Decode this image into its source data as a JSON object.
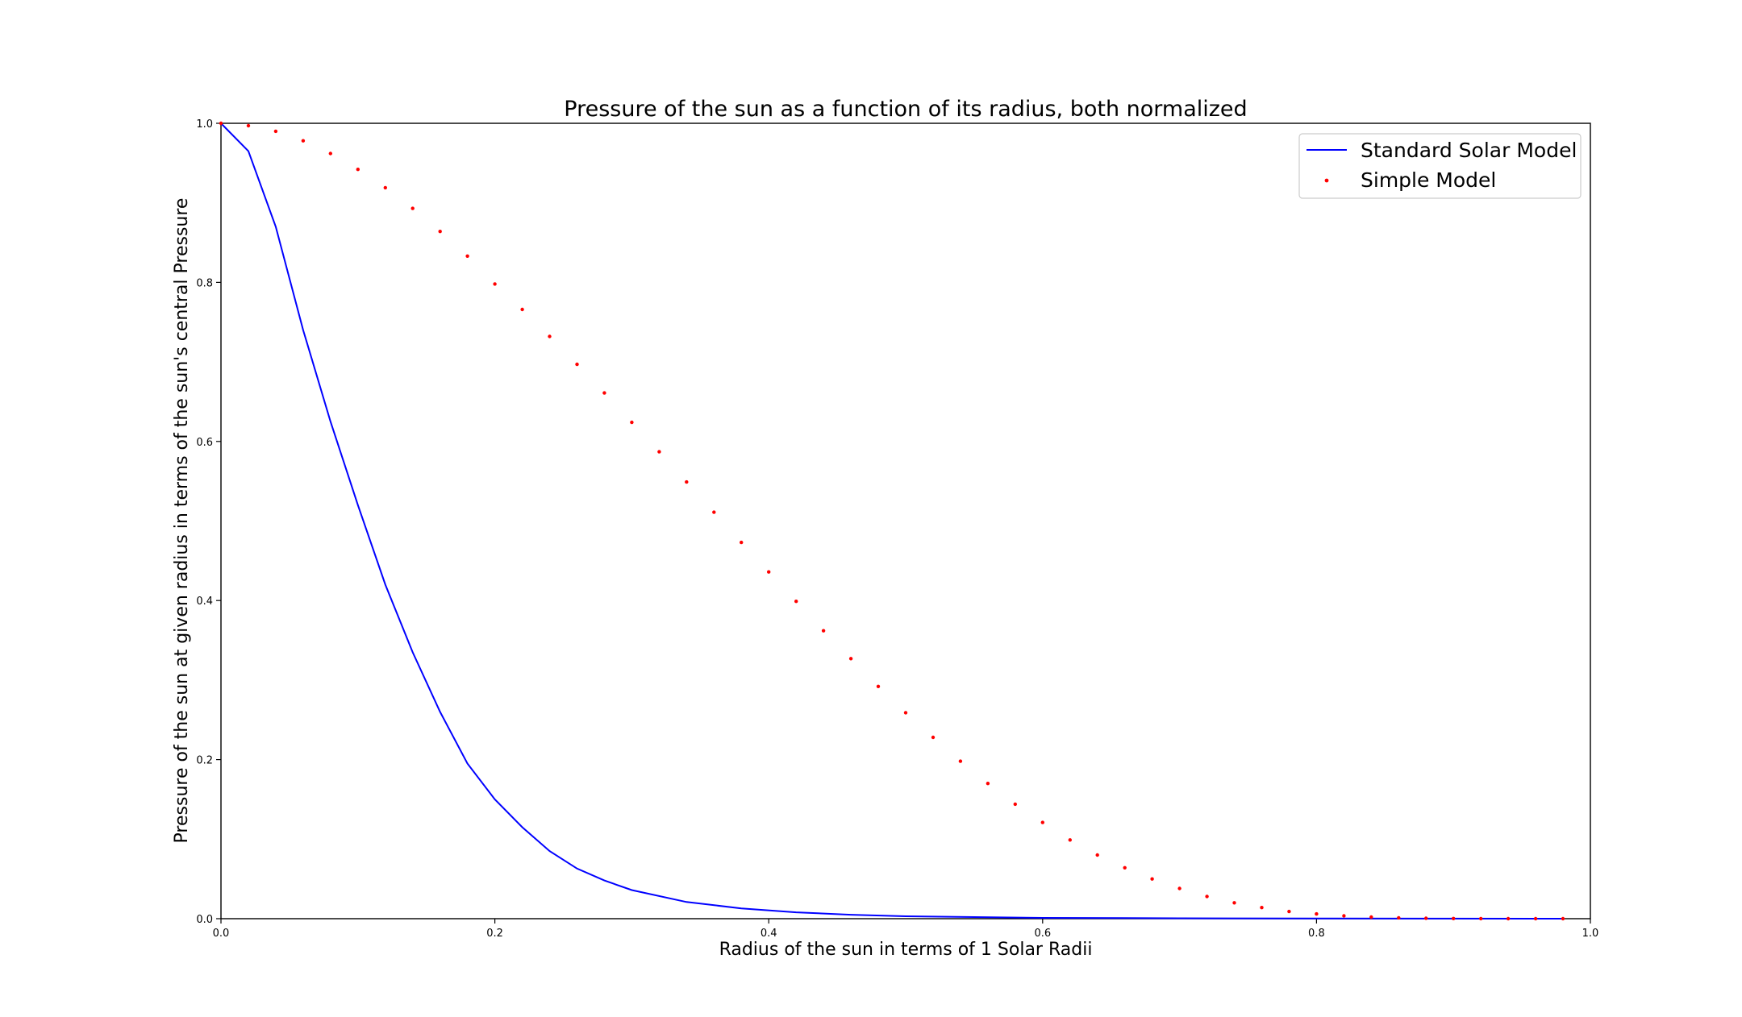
{
  "chart_data": {
    "type": "line",
    "title": "Pressure of the sun as a function of its radius, both normalized",
    "xlabel": "Radius of the sun in terms of 1 Solar Radii",
    "ylabel": "Pressure of the sun at given radius in terms of the sun's central Pressure",
    "xlim": [
      0.0,
      1.0
    ],
    "ylim": [
      0.0,
      1.0
    ],
    "x_ticks": [
      "0.0",
      "0.2",
      "0.4",
      "0.6",
      "0.8",
      "1.0"
    ],
    "y_ticks": [
      "0.0",
      "0.2",
      "0.4",
      "0.6",
      "0.8",
      "1.0"
    ],
    "grid": false,
    "legend_position": "top-right",
    "series": [
      {
        "name": "Standard Solar Model",
        "kind": "line",
        "color": "#0000ff",
        "x": [
          0.0,
          0.02,
          0.04,
          0.06,
          0.08,
          0.1,
          0.12,
          0.14,
          0.16,
          0.18,
          0.2,
          0.22,
          0.24,
          0.26,
          0.28,
          0.3,
          0.34,
          0.38,
          0.42,
          0.46,
          0.5,
          0.55,
          0.6,
          0.7,
          0.8,
          0.9,
          0.98
        ],
        "y": [
          1.0,
          0.965,
          0.87,
          0.74,
          0.625,
          0.52,
          0.42,
          0.335,
          0.26,
          0.195,
          0.15,
          0.115,
          0.085,
          0.063,
          0.048,
          0.036,
          0.021,
          0.013,
          0.008,
          0.005,
          0.003,
          0.002,
          0.001,
          0.0005,
          0.0002,
          0.0001,
          0.0
        ]
      },
      {
        "name": "Simple Model",
        "kind": "scatter",
        "color": "#ff0000",
        "x": [
          0.0,
          0.02,
          0.04,
          0.06,
          0.08,
          0.1,
          0.12,
          0.14,
          0.16,
          0.18,
          0.2,
          0.22,
          0.24,
          0.26,
          0.28,
          0.3,
          0.32,
          0.34,
          0.36,
          0.38,
          0.4,
          0.42,
          0.44,
          0.46,
          0.48,
          0.5,
          0.52,
          0.54,
          0.56,
          0.58,
          0.6,
          0.62,
          0.64,
          0.66,
          0.68,
          0.7,
          0.72,
          0.74,
          0.76,
          0.78,
          0.8,
          0.82,
          0.84,
          0.86,
          0.88,
          0.9,
          0.92,
          0.94,
          0.96,
          0.98
        ],
        "y": [
          1.0,
          0.997,
          0.99,
          0.978,
          0.962,
          0.942,
          0.919,
          0.893,
          0.864,
          0.833,
          0.798,
          0.766,
          0.732,
          0.697,
          0.661,
          0.624,
          0.587,
          0.549,
          0.511,
          0.473,
          0.436,
          0.399,
          0.362,
          0.327,
          0.292,
          0.259,
          0.228,
          0.198,
          0.17,
          0.144,
          0.121,
          0.099,
          0.08,
          0.064,
          0.05,
          0.038,
          0.028,
          0.02,
          0.014,
          0.009,
          0.006,
          0.0035,
          0.002,
          0.0011,
          0.0005,
          0.0002,
          0.0001,
          0.0,
          0.0,
          0.0
        ]
      }
    ]
  }
}
